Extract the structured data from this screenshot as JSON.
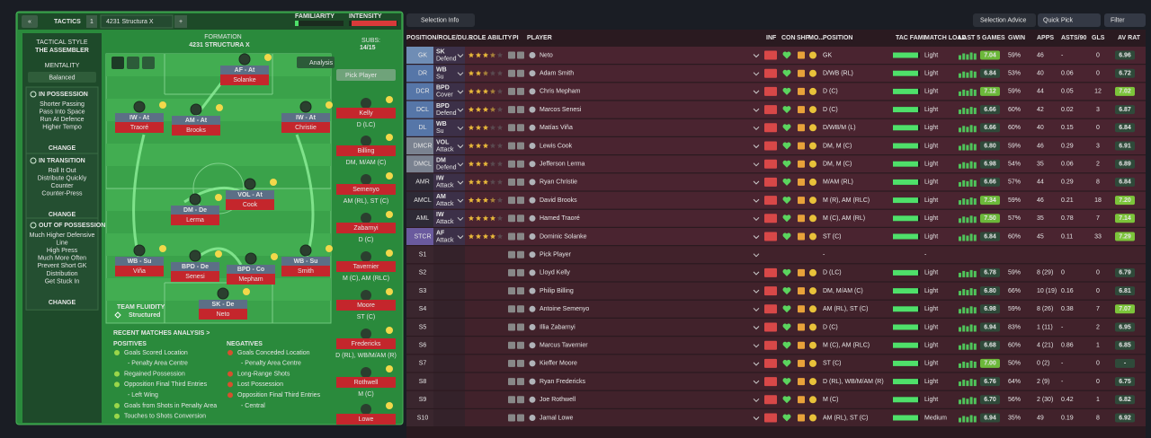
{
  "top_bar": {
    "back": "«",
    "tactics_label": "TACTICS",
    "slot": "1",
    "tactic_name": "4231 Structura X",
    "add": "+",
    "familiarity": "FAMILIARITY",
    "intensity": "INTENSITY"
  },
  "sidebar": {
    "style_label": "TACTICAL STYLE",
    "style": "THE ASSEMBLER",
    "mentality_label": "MENTALITY",
    "mentality": "Balanced",
    "sections": [
      {
        "title": "IN POSSESSION",
        "items": [
          "Shorter Passing",
          "Pass Into Space",
          "Run At Defence",
          "Higher Tempo"
        ],
        "button": "CHANGE"
      },
      {
        "title": "IN TRANSITION",
        "items": [
          "Roll It Out",
          "Distribute Quickly",
          "Counter",
          "Counter-Press"
        ],
        "button": "CHANGE"
      },
      {
        "title": "OUT OF POSSESSION",
        "items": [
          "Much Higher Defensive",
          "Line",
          "High Press",
          "Much More Often",
          "Prevent Short GK",
          "Distribution",
          "Get Stuck In"
        ],
        "button": "CHANGE"
      }
    ]
  },
  "pitch": {
    "formation_label": "FORMATION",
    "formation": "4231 STRUCTURA X",
    "subs_label": "SUBS:",
    "subs": "14/15",
    "analysis": "Analysis",
    "pick_player": "Pick Player",
    "fluidity_label": "TEAM FLUIDITY",
    "fluidity": "Structured",
    "players": [
      {
        "role": "AF - At",
        "name": "Solanke"
      },
      {
        "role": "IW - At",
        "name": "Traoré"
      },
      {
        "role": "AM - At",
        "name": "Brooks"
      },
      {
        "role": "IW - At",
        "name": "Christie"
      },
      {
        "role": "VOL - At",
        "name": "Cook"
      },
      {
        "role": "DM - De",
        "name": "Lerma"
      },
      {
        "role": "WB - Su",
        "name": "Viña"
      },
      {
        "role": "BPD - De",
        "name": "Senesi"
      },
      {
        "role": "BPD - Co",
        "name": "Mepham"
      },
      {
        "role": "WB - Su",
        "name": "Smith"
      },
      {
        "role": "SK - De",
        "name": "Neto"
      }
    ],
    "bench": [
      {
        "name": "Kelly",
        "position": "D (LC)"
      },
      {
        "name": "Billing",
        "position": "DM, M/AM (C)"
      },
      {
        "name": "Semenyo",
        "position": "AM (RL), ST (C)"
      },
      {
        "name": "Zabarnyi",
        "position": "D (C)"
      },
      {
        "name": "Tavernier",
        "position": "M (C), AM (RLC)"
      },
      {
        "name": "Moore",
        "position": "ST (C)"
      },
      {
        "name": "Fredericks",
        "position": "D (RL), WB/M/AM (R)"
      },
      {
        "name": "Rothwell",
        "position": "M (C)"
      },
      {
        "name": "Lowe"
      }
    ]
  },
  "analysis": {
    "title": "RECENT MATCHES ANALYSIS >",
    "positives_label": "POSITIVES",
    "positives": [
      "Goals Scored Location",
      "- Penalty Area Centre",
      "Regained Possession",
      "Opposition Final Third Entries",
      "- Left Wing",
      "Goals from Shots in Penalty Area",
      "Touches to Shots Conversion"
    ],
    "negatives_label": "NEGATIVES",
    "negatives": [
      "Goals Conceded Location",
      "- Penalty Area Centre",
      "Long-Range Shots",
      "Lost Possession",
      "Opposition Final Third Entries",
      "- Central"
    ]
  },
  "toolbar": {
    "selection_info": "Selection Info",
    "selection_advice": "Selection Advice",
    "quick_pick": "Quick Pick",
    "filter": "Filter"
  },
  "table": {
    "columns": [
      "POSITION/ROLE/DU...",
      "ROLE ABILITY",
      "PI",
      "PLAYER",
      "INF",
      "CON",
      "SHP",
      "MO...",
      "POSITION",
      "TAC FAMI",
      "MATCH LOAD",
      "LAST 5 GAMES",
      "GWIN",
      "APPS",
      "ASTS/90",
      "GLS",
      "AV RAT"
    ],
    "rows": [
      {
        "slot": "GK",
        "role": "SK",
        "duty": "Defend",
        "role_ability": 3.5,
        "player": "Neto",
        "position": "GK",
        "match_load": "Light",
        "rating": "7.04",
        "gwin": "59%",
        "apps": "46",
        "asts90": "-",
        "gls": "0",
        "av_rat": "6.96"
      },
      {
        "slot": "DR",
        "role": "WB",
        "duty": "Su",
        "role_ability": 2.5,
        "player": "Adam Smith",
        "position": "D/WB (RL)",
        "match_load": "Light",
        "rating": "6.84",
        "gwin": "53%",
        "apps": "40",
        "asts90": "0.06",
        "gls": "0",
        "av_rat": "6.72"
      },
      {
        "slot": "DCR",
        "role": "BPD",
        "duty": "Cover",
        "role_ability": 3.5,
        "player": "Chris Mepham",
        "position": "D (C)",
        "match_load": "Light",
        "rating": "7.12",
        "gwin": "59%",
        "apps": "44",
        "asts90": "0.05",
        "gls": "12",
        "av_rat": "7.02"
      },
      {
        "slot": "DCL",
        "role": "BPD",
        "duty": "Defend",
        "role_ability": 3.5,
        "player": "Marcos Senesi",
        "position": "D (C)",
        "match_load": "Light",
        "rating": "6.66",
        "gwin": "60%",
        "apps": "42",
        "asts90": "0.02",
        "gls": "3",
        "av_rat": "6.87"
      },
      {
        "slot": "DL",
        "role": "WB",
        "duty": "Su",
        "role_ability": 3,
        "player": "Matías Viña",
        "position": "D/WB/M (L)",
        "match_load": "Light",
        "rating": "6.66",
        "gwin": "60%",
        "apps": "40",
        "asts90": "0.15",
        "gls": "0",
        "av_rat": "6.84"
      },
      {
        "slot": "DMCR",
        "role": "VOL",
        "duty": "Attack",
        "role_ability": 3,
        "player": "Lewis Cook",
        "position": "DM, M (C)",
        "match_load": "Light",
        "rating": "6.80",
        "gwin": "59%",
        "apps": "46",
        "asts90": "0.29",
        "gls": "3",
        "av_rat": "6.91"
      },
      {
        "slot": "DMCL",
        "role": "DM",
        "duty": "Defend",
        "role_ability": 3,
        "player": "Jefferson Lerma",
        "position": "DM, M (C)",
        "match_load": "Light",
        "rating": "6.98",
        "gwin": "54%",
        "apps": "35",
        "asts90": "0.06",
        "gls": "2",
        "av_rat": "6.89"
      },
      {
        "slot": "AMR",
        "role": "IW",
        "duty": "Attack",
        "role_ability": 3,
        "player": "Ryan Christie",
        "position": "M/AM (RL)",
        "match_load": "Light",
        "rating": "6.66",
        "gwin": "57%",
        "apps": "44",
        "asts90": "0.29",
        "gls": "8",
        "av_rat": "6.84"
      },
      {
        "slot": "AMCL",
        "role": "AM",
        "duty": "Attack",
        "role_ability": 3.5,
        "player": "David Brooks",
        "position": "M (R), AM (RLC)",
        "match_load": "Light",
        "rating": "7.34",
        "gwin": "59%",
        "apps": "46",
        "asts90": "0.21",
        "gls": "18",
        "av_rat": "7.20"
      },
      {
        "slot": "AML",
        "role": "IW",
        "duty": "Attack",
        "role_ability": 4,
        "player": "Hamed Traoré",
        "position": "M (C), AM (RL)",
        "match_load": "Light",
        "rating": "7.50",
        "gwin": "57%",
        "apps": "35",
        "asts90": "0.78",
        "gls": "7",
        "av_rat": "7.14"
      },
      {
        "slot": "STCR",
        "role": "AF",
        "duty": "Attack",
        "role_ability": 4,
        "player": "Dominic Solanke",
        "position": "ST (C)",
        "match_load": "Light",
        "rating": "6.84",
        "gwin": "60%",
        "apps": "45",
        "asts90": "0.11",
        "gls": "33",
        "av_rat": "7.29"
      },
      {
        "slot": "S1",
        "player": "Pick Player",
        "position": "-",
        "match_load": "-"
      },
      {
        "slot": "S2",
        "player": "Lloyd Kelly",
        "position": "D (LC)",
        "match_load": "Light",
        "rating": "6.78",
        "gwin": "59%",
        "apps": "8 (29)",
        "asts90": "0",
        "gls": "0",
        "av_rat": "6.79"
      },
      {
        "slot": "S3",
        "player": "Philip Billing",
        "position": "DM, M/AM (C)",
        "match_load": "Light",
        "rating": "6.80",
        "gwin": "66%",
        "apps": "10 (19)",
        "asts90": "0.16",
        "gls": "0",
        "av_rat": "6.81"
      },
      {
        "slot": "S4",
        "player": "Antoine Semenyo",
        "position": "AM (RL), ST (C)",
        "match_load": "Light",
        "rating": "6.98",
        "gwin": "59%",
        "apps": "8 (26)",
        "asts90": "0.38",
        "gls": "7",
        "av_rat": "7.07"
      },
      {
        "slot": "S5",
        "player": "Illia Zabarnyi",
        "position": "D (C)",
        "match_load": "Light",
        "rating": "6.94",
        "gwin": "83%",
        "apps": "1 (11)",
        "asts90": "-",
        "gls": "2",
        "av_rat": "6.95"
      },
      {
        "slot": "S6",
        "player": "Marcus Tavernier",
        "position": "M (C), AM (RLC)",
        "match_load": "Light",
        "rating": "6.68",
        "gwin": "60%",
        "apps": "4 (21)",
        "asts90": "0.86",
        "gls": "1",
        "av_rat": "6.85"
      },
      {
        "slot": "S7",
        "player": "Kieffer Moore",
        "position": "ST (C)",
        "match_load": "Light",
        "rating": "7.00",
        "gwin": "50%",
        "apps": "0 (2)",
        "asts90": "-",
        "gls": "0",
        "av_rat": "-"
      },
      {
        "slot": "S8",
        "player": "Ryan Fredericks",
        "position": "D (RL), WB/M/AM (R)",
        "match_load": "Light",
        "rating": "6.76",
        "gwin": "64%",
        "apps": "2 (9)",
        "asts90": "-",
        "gls": "0",
        "av_rat": "6.75"
      },
      {
        "slot": "S9",
        "player": "Joe Rothwell",
        "position": "M (C)",
        "match_load": "Light",
        "rating": "6.70",
        "gwin": "56%",
        "apps": "2 (30)",
        "asts90": "0.42",
        "gls": "1",
        "av_rat": "6.82"
      },
      {
        "slot": "S10",
        "player": "Jamal Lowe",
        "position": "AM (RL), ST (C)",
        "match_load": "Medium",
        "rating": "6.94",
        "gwin": "35%",
        "apps": "49",
        "asts90": "0.19",
        "gls": "8",
        "av_rat": "6.92"
      }
    ]
  }
}
